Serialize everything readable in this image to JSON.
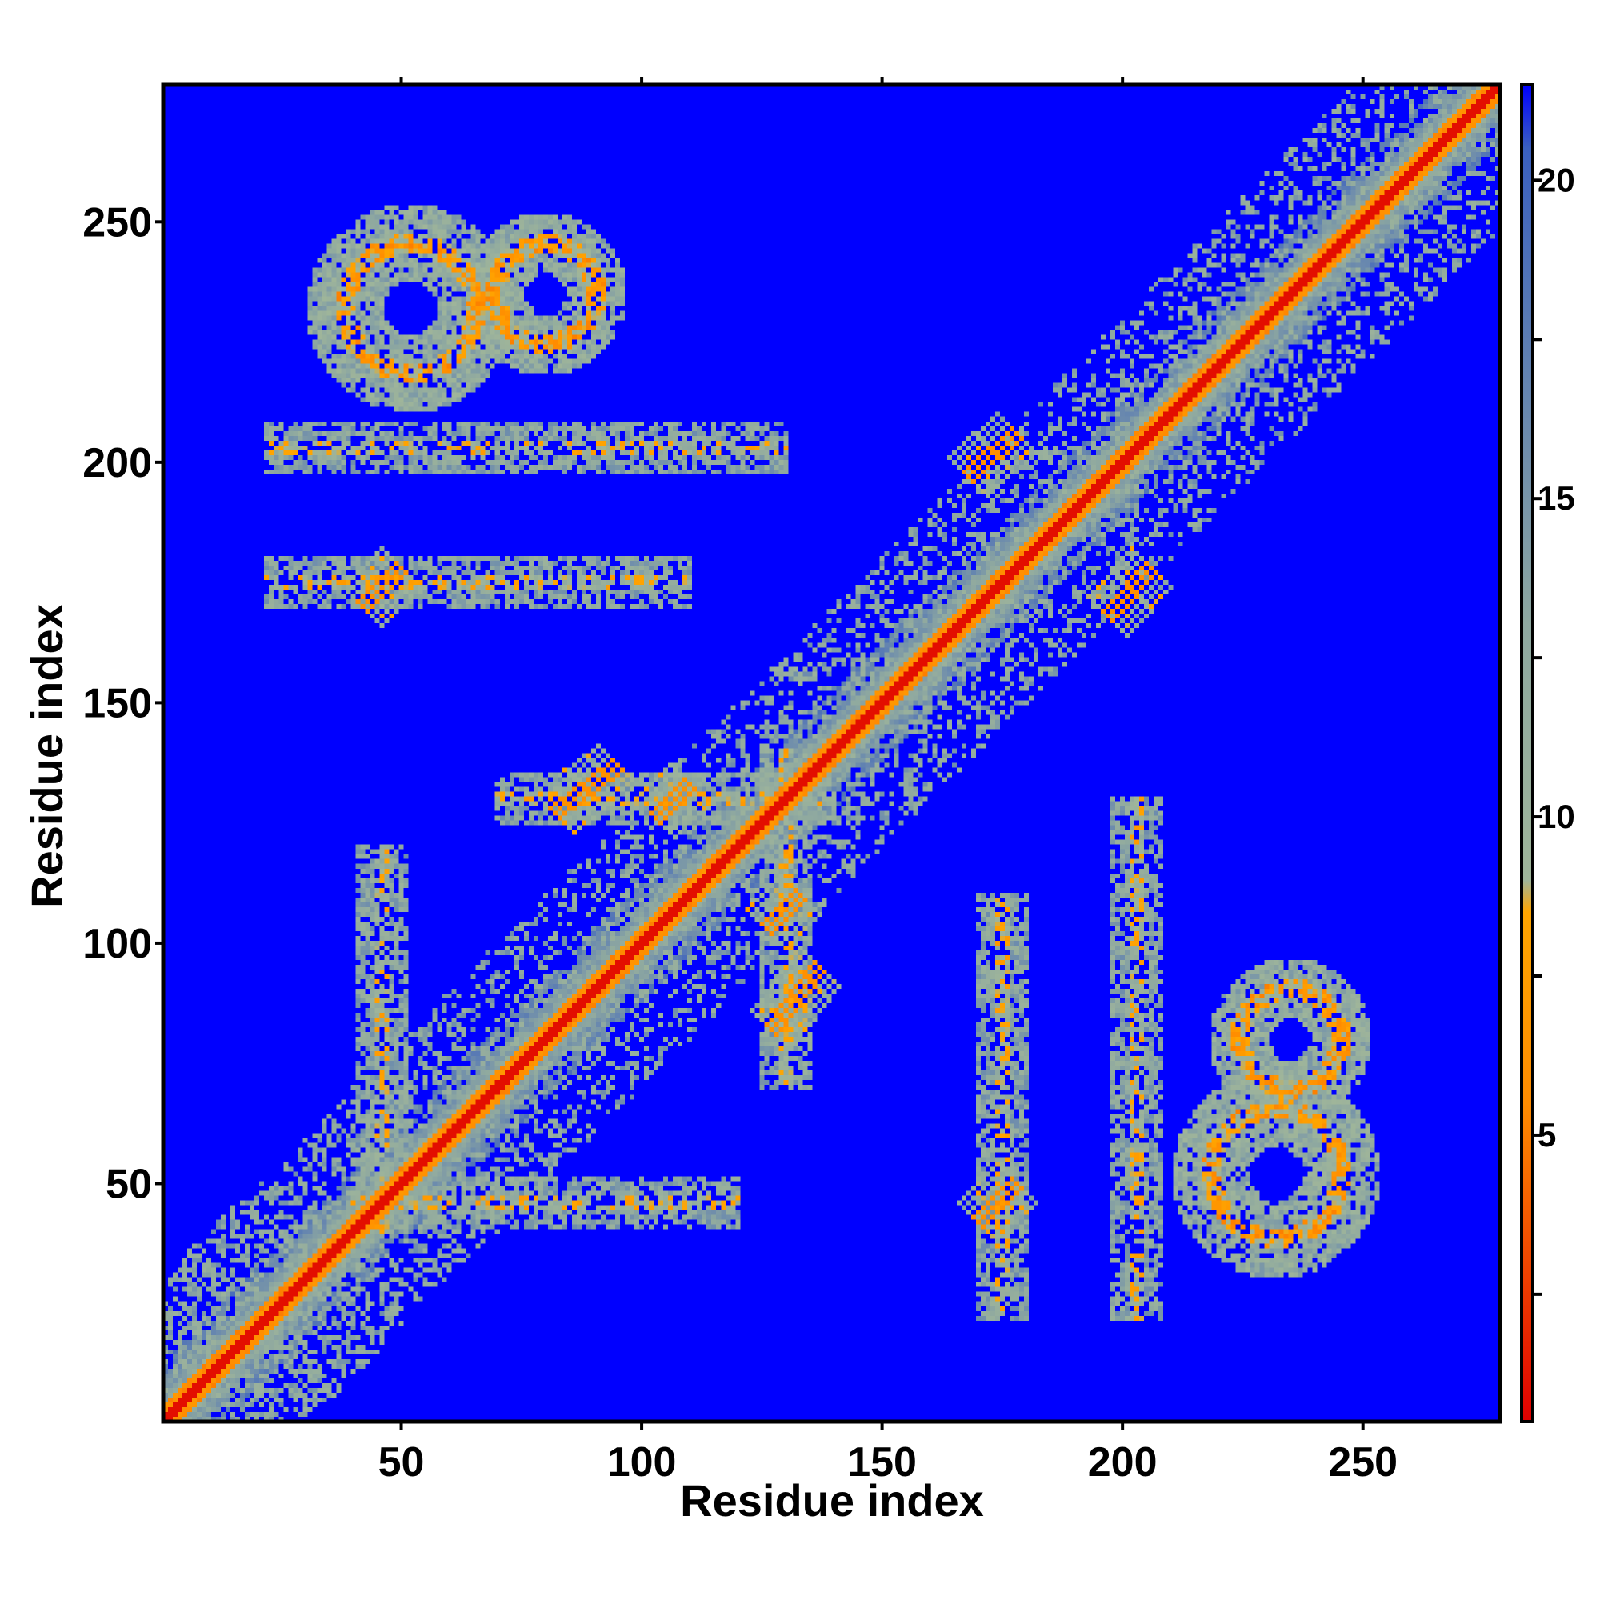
{
  "chart_data": {
    "type": "heatmap",
    "title": "",
    "xlabel": "Residue index",
    "ylabel": "Residue index",
    "n_residues": 278,
    "xlim": [
      1,
      278
    ],
    "ylim": [
      1,
      278
    ],
    "x_ticks": [
      50,
      100,
      150,
      200,
      250
    ],
    "y_ticks": [
      50,
      100,
      150,
      200,
      250
    ],
    "x_tick_labels": [
      "50",
      "100",
      "150",
      "200",
      "250"
    ],
    "y_tick_labels": [
      "50",
      "100",
      "150",
      "200",
      "250"
    ],
    "colorbar": {
      "range": [
        0.5,
        21.5
      ],
      "ticks": [
        5,
        10,
        15,
        20
      ],
      "tick_labels": [
        "5",
        "10",
        "15",
        "20"
      ],
      "stops": [
        {
          "value": 0.5,
          "color": "#e00000"
        },
        {
          "value": 5.5,
          "color": "#ff8c00"
        },
        {
          "value": 8.5,
          "color": "#ffa500"
        },
        {
          "value": 9.0,
          "color": "#9fb59a"
        },
        {
          "value": 13.0,
          "color": "#8ea8a0"
        },
        {
          "value": 20.5,
          "color": "#3a60c0"
        },
        {
          "value": 21.5,
          "color": "#0000ff"
        }
      ]
    },
    "background_color": "#0000ff",
    "background_value": 21,
    "features": [
      {
        "kind": "diagonal",
        "from": 1,
        "to": 278
      },
      {
        "kind": "helix_band",
        "start": 1,
        "end": 45
      },
      {
        "kind": "helix_band",
        "start": 45,
        "end": 130
      },
      {
        "kind": "helix_band",
        "start": 130,
        "end": 200
      },
      {
        "kind": "helix_band",
        "start": 200,
        "end": 278
      },
      {
        "kind": "blob",
        "x": 52,
        "y": 232,
        "radius": 18
      },
      {
        "kind": "blob",
        "x": 232,
        "y": 52,
        "radius": 18
      },
      {
        "kind": "blob",
        "x": 80,
        "y": 235,
        "radius": 14
      },
      {
        "kind": "blob",
        "x": 235,
        "y": 80,
        "radius": 14
      },
      {
        "kind": "strand",
        "x1": 42,
        "y1": 170,
        "x2": 50,
        "y2": 178
      },
      {
        "kind": "strand",
        "x1": 170,
        "y1": 42,
        "x2": 178,
        "y2": 50
      },
      {
        "kind": "strand",
        "x1": 82,
        "y1": 127,
        "x2": 95,
        "y2": 137
      },
      {
        "kind": "strand",
        "x1": 127,
        "y1": 82,
        "x2": 137,
        "y2": 95
      },
      {
        "kind": "strand",
        "x1": 168,
        "y1": 197,
        "x2": 178,
        "y2": 206
      },
      {
        "kind": "strand",
        "x1": 197,
        "y1": 168,
        "x2": 206,
        "y2": 178
      },
      {
        "kind": "strand",
        "x1": 126,
        "y1": 103,
        "x2": 133,
        "y2": 110
      },
      {
        "kind": "strand",
        "x1": 103,
        "y1": 126,
        "x2": 110,
        "y2": 133
      },
      {
        "kind": "hband",
        "x1": 22,
        "x2": 130,
        "y": 203
      },
      {
        "kind": "hband",
        "x1": 22,
        "x2": 110,
        "y": 175
      },
      {
        "kind": "hband",
        "x1": 70,
        "x2": 140,
        "y": 130
      },
      {
        "kind": "hband",
        "x1": 40,
        "x2": 120,
        "y": 46
      },
      {
        "kind": "vband",
        "y1": 22,
        "y2": 130,
        "x": 203
      },
      {
        "kind": "vband",
        "y1": 22,
        "y2": 110,
        "x": 175
      },
      {
        "kind": "vband",
        "y1": 70,
        "y2": 140,
        "x": 130
      },
      {
        "kind": "vband",
        "y1": 40,
        "y2": 120,
        "x": 46
      }
    ]
  },
  "labels": {
    "x_axis_title": "Residue index",
    "y_axis_title": "Residue index"
  }
}
